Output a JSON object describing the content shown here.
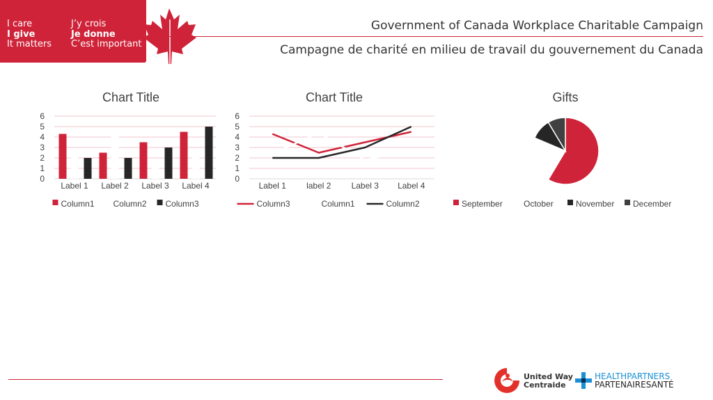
{
  "header": {
    "slogan_en": [
      "I care",
      "I give",
      "It matters"
    ],
    "slogan_fr": [
      "J’y crois",
      "Je donne",
      "C’est important"
    ],
    "title_en": "Government of Canada Workplace Charitable Campaign",
    "title_fr": "Campagne de charité en milieu de travail du gouvernement du Canada",
    "brand_color": "#cf2339"
  },
  "footer": {
    "united_way_line1": "United Way",
    "united_way_line2": "Centraide",
    "health_line1": "HEALTHPARTNERS",
    "health_line2": "PARTENAIRESANTÉ"
  },
  "chart_data": [
    {
      "type": "bar",
      "title": "Chart Title",
      "categories": [
        "Label 1",
        "Label 2",
        "Label 3",
        "Label 4"
      ],
      "ylim": [
        0,
        6
      ],
      "yticks": [
        "0",
        "1",
        "2",
        "3",
        "4",
        "5",
        "6"
      ],
      "grid": true,
      "legend_position": "bottom",
      "series": [
        {
          "name": "Column1",
          "values": [
            4.3,
            2.5,
            3.5,
            4.5
          ],
          "color": "#cf2339"
        },
        {
          "name": "Column2",
          "values": [
            2.4,
            4.4,
            1.8,
            2.8
          ],
          "color": "#ffffff"
        },
        {
          "name": "Column3",
          "values": [
            2,
            2,
            3,
            5
          ],
          "color": "#262626"
        }
      ]
    },
    {
      "type": "line",
      "title": "Chart Title",
      "categories": [
        "Label 1",
        "label 2",
        "Label 3",
        "Label 4"
      ],
      "ylim": [
        0,
        6
      ],
      "yticks": [
        "0",
        "1",
        "2",
        "3",
        "4",
        "5",
        "6"
      ],
      "grid": true,
      "legend_position": "bottom",
      "series": [
        {
          "name": "Column3",
          "values": [
            4.3,
            2.5,
            3.5,
            4.5
          ],
          "color": "#cf2339"
        },
        {
          "name": "Column1",
          "values": [
            2.4,
            4.4,
            1.8,
            2.8
          ],
          "color": "#ffffff"
        },
        {
          "name": "Column2",
          "values": [
            2,
            2,
            3,
            5
          ],
          "color": "#262626"
        }
      ]
    },
    {
      "type": "pie",
      "title": "Gifts",
      "legend_position": "bottom",
      "categories": [
        "September",
        "October",
        "November",
        "December"
      ],
      "values": [
        8.2,
        3.2,
        1.4,
        1.2
      ],
      "colors": [
        "#cf2339",
        "#ffffff",
        "#262626",
        "#404040"
      ]
    }
  ]
}
